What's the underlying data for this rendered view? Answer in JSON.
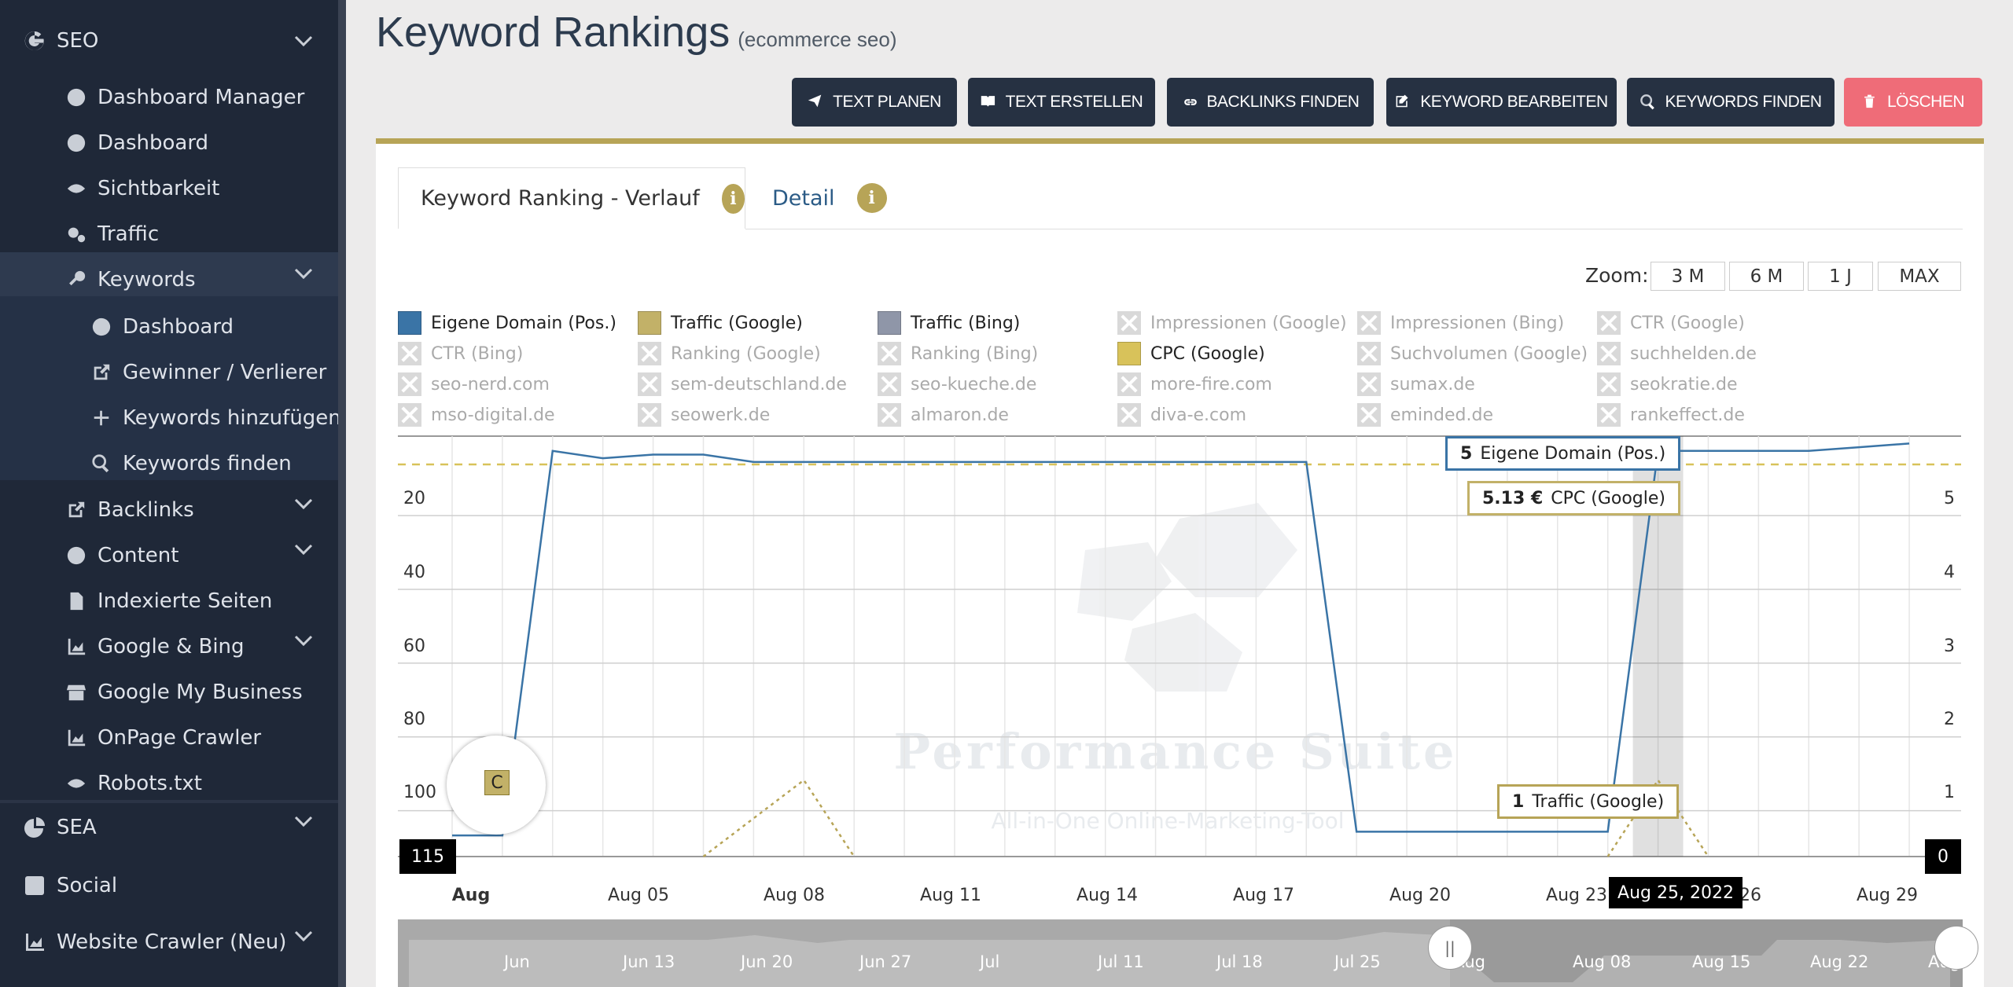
{
  "sidebar": {
    "seo": {
      "label": "SEO"
    },
    "items": [
      {
        "label": "Dashboard Manager",
        "icon": "palette-icon"
      },
      {
        "label": "Dashboard",
        "icon": "palette-icon"
      },
      {
        "label": "Sichtbarkeit",
        "icon": "eye-icon"
      },
      {
        "label": "Traffic",
        "icon": "cogs-icon"
      },
      {
        "label": "Keywords",
        "icon": "key-icon"
      },
      {
        "label": "Dashboard",
        "icon": "palette-icon"
      },
      {
        "label": "Gewinner / Verlierer",
        "icon": "external-link-icon"
      },
      {
        "label": "Keywords hinzufügen",
        "icon": "plus-icon"
      },
      {
        "label": "Keywords finden",
        "icon": "search-icon"
      },
      {
        "label": "Backlinks",
        "icon": "external-link-icon"
      },
      {
        "label": "Content",
        "icon": "clock-icon"
      },
      {
        "label": "Indexierte Seiten",
        "icon": "file-icon"
      },
      {
        "label": "Google & Bing",
        "icon": "area-chart-icon"
      },
      {
        "label": "Google My Business",
        "icon": "store-icon"
      },
      {
        "label": "OnPage Crawler",
        "icon": "area-chart-icon"
      },
      {
        "label": "Robots.txt",
        "icon": "eye-icon"
      }
    ],
    "sections": [
      {
        "label": "SEA",
        "icon": "pie-chart-icon"
      },
      {
        "label": "Social",
        "icon": "facebook-icon"
      },
      {
        "label": "Website Crawler (Neu)",
        "icon": "area-chart-icon"
      }
    ]
  },
  "header": {
    "title": "Keyword Rankings",
    "subtitle": "(ecommerce seo)"
  },
  "toolbar": [
    {
      "label": "TEXT PLANEN",
      "icon": "paper-plane-icon"
    },
    {
      "label": "TEXT ERSTELLEN",
      "icon": "book-icon"
    },
    {
      "label": "BACKLINKS FINDEN",
      "icon": "link-icon"
    },
    {
      "label": "KEYWORD BEARBEITEN",
      "icon": "edit-icon"
    },
    {
      "label": "KEYWORDS FINDEN",
      "icon": "search-icon"
    },
    {
      "label": "LÖSCHEN",
      "icon": "trash-icon"
    }
  ],
  "colors": {
    "primary_dark": "#263142",
    "danger": "#ef6c78",
    "gold": "#b7a457",
    "domain_blue": "#3a74a6",
    "cpc_yellow": "#d8c25a",
    "bing_grey": "#8f96a8"
  },
  "tabs": [
    {
      "label": "Keyword Ranking - Verlauf",
      "info": "i"
    },
    {
      "label": "Detail",
      "info": "i"
    }
  ],
  "zoom": {
    "label": "Zoom:",
    "options": [
      "3 M",
      "6 M",
      "1 J",
      "MAX"
    ]
  },
  "legend": [
    {
      "label": "Eigene Domain (Pos.)",
      "enabled": true,
      "color": "#3a74a6"
    },
    {
      "label": "Traffic (Google)",
      "enabled": true,
      "color": "#c2b168"
    },
    {
      "label": "Traffic (Bing)",
      "enabled": true,
      "color": "#8f96a8"
    },
    {
      "label": "Impressionen (Google)",
      "enabled": false
    },
    {
      "label": "Impressionen (Bing)",
      "enabled": false
    },
    {
      "label": "CTR (Google)",
      "enabled": false
    },
    {
      "label": "CTR (Bing)",
      "enabled": false
    },
    {
      "label": "Ranking (Google)",
      "enabled": false
    },
    {
      "label": "Ranking (Bing)",
      "enabled": false
    },
    {
      "label": "CPC (Google)",
      "enabled": true,
      "color": "#d8c25a"
    },
    {
      "label": "Suchvolumen (Google)",
      "enabled": false
    },
    {
      "label": "suchhelden.de",
      "enabled": false
    },
    {
      "label": "seo-nerd.com",
      "enabled": false
    },
    {
      "label": "sem-deutschland.de",
      "enabled": false
    },
    {
      "label": "seo-kueche.de",
      "enabled": false
    },
    {
      "label": "more-fire.com",
      "enabled": false
    },
    {
      "label": "sumax.de",
      "enabled": false
    },
    {
      "label": "seokratie.de",
      "enabled": false
    },
    {
      "label": "mso-digital.de",
      "enabled": false
    },
    {
      "label": "seowerk.de",
      "enabled": false
    },
    {
      "label": "almaron.de",
      "enabled": false
    },
    {
      "label": "diva-e.com",
      "enabled": false
    },
    {
      "label": "eminded.de",
      "enabled": false
    },
    {
      "label": "rankeffect.de",
      "enabled": false
    }
  ],
  "watermark": {
    "title": "Performance Suite",
    "tagline": "All-in-One Online-Marketing-Tool"
  },
  "chart_data": {
    "type": "line",
    "x_ticks": [
      "Aug",
      "Aug 05",
      "Aug 08",
      "Aug 11",
      "Aug 14",
      "Aug 17",
      "Aug 20",
      "Aug 23",
      "Aug 25, 2022",
      "26",
      "Aug 29"
    ],
    "y_left_ticks": [
      "20",
      "40",
      "60",
      "80",
      "100",
      "115"
    ],
    "y_right_ticks": [
      "5",
      "4",
      "3",
      "2",
      "1",
      "0"
    ],
    "y_left_range": [
      1,
      115
    ],
    "y_right_range": [
      0,
      5.5
    ],
    "y_left_reversed": true,
    "series": [
      {
        "name": "Eigene Domain (Pos.)",
        "axis": "left",
        "x": [
          "Aug 01",
          "Aug 02",
          "Aug 03",
          "Aug 04",
          "Aug 05",
          "Aug 06",
          "Aug 07",
          "Aug 08",
          "Aug 09",
          "Aug 10",
          "Aug 11",
          "Aug 12",
          "Aug 13",
          "Aug 14",
          "Aug 15",
          "Aug 16",
          "Aug 17",
          "Aug 18",
          "Aug 19",
          "Aug 20",
          "Aug 21",
          "Aug 22",
          "Aug 23",
          "Aug 24",
          "Aug 25",
          "Aug 26",
          "Aug 27",
          "Aug 28",
          "Aug 29",
          "Aug 30"
        ],
        "values": [
          105,
          105,
          5,
          7,
          6,
          6,
          8,
          8,
          8,
          8,
          8,
          8,
          8,
          8,
          8,
          8,
          8,
          8,
          104,
          104,
          104,
          104,
          104,
          104,
          5,
          5,
          5,
          5,
          4,
          3
        ]
      },
      {
        "name": "CPC (Google)",
        "axis": "right",
        "value": 5.13,
        "unit": "€"
      },
      {
        "name": "Traffic (Google)",
        "axis": "right",
        "x": [
          "Aug 06",
          "Aug 08",
          "Aug 09",
          "Aug 24",
          "Aug 25",
          "Aug 26"
        ],
        "values": [
          0,
          1,
          0,
          0,
          1,
          0
        ]
      }
    ],
    "tooltip": {
      "date": "Aug 25, 2022",
      "entries": [
        {
          "value": "5",
          "label": "Eigene Domain (Pos.)"
        },
        {
          "value": "5.13 €",
          "label": "CPC (Google)"
        },
        {
          "value": "1",
          "label": "Traffic (Google)"
        }
      ]
    },
    "navigator_labels": [
      "Jun",
      "Jun 13",
      "Jun 20",
      "Jun 27",
      "Jul",
      "Jul 11",
      "Jul 18",
      "Jul 25",
      "Aug",
      "Aug 08",
      "Aug 15",
      "Aug 22",
      "Aug"
    ],
    "annotation": "C",
    "grid": true
  }
}
